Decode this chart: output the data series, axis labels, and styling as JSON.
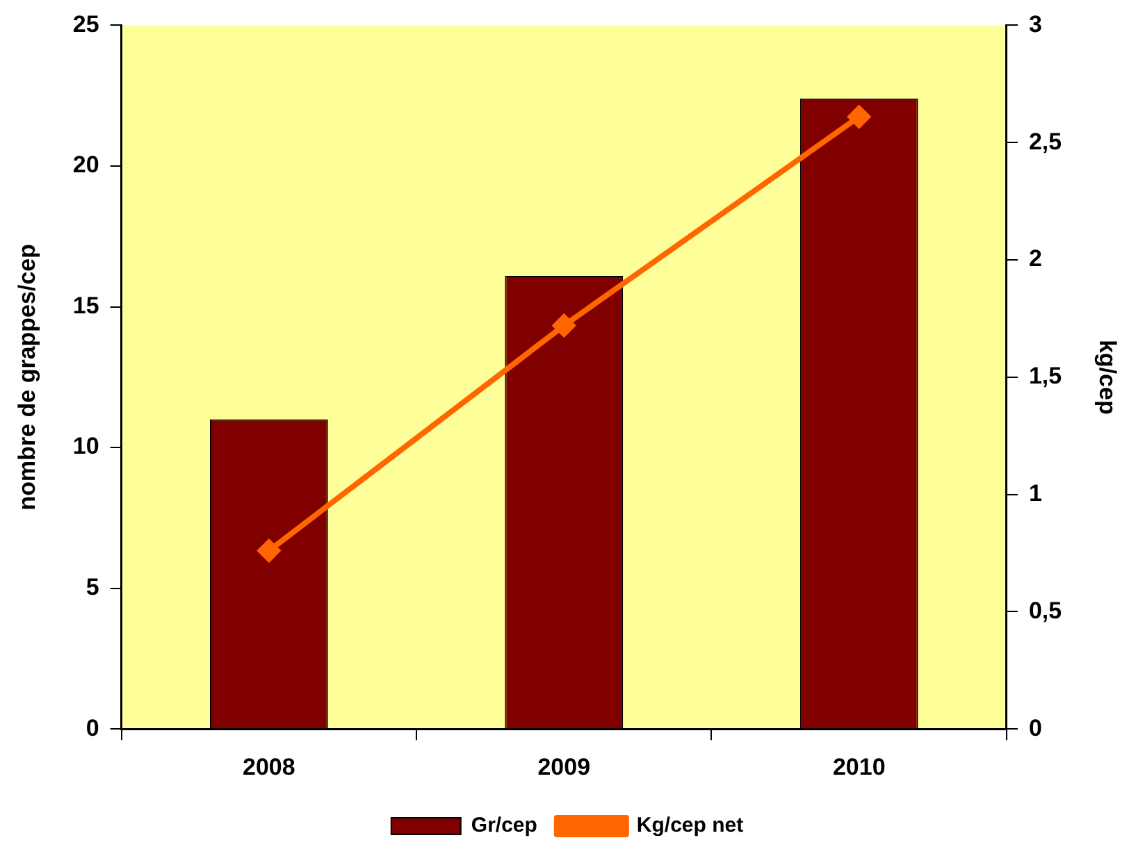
{
  "chart_data": {
    "type": "bar",
    "ylabel": "nombre de grappes/cep",
    "y2label": "kg/cep",
    "categories": [
      "2008",
      "2009",
      "2010"
    ],
    "series": [
      {
        "name": "Gr/cep",
        "color": "#800000",
        "values": [
          11,
          16.1,
          22.4
        ]
      },
      {
        "name": "Kg/cep net",
        "type": "line",
        "axis": "y2",
        "color": "#ff6600",
        "marker": "diamond",
        "values": [
          0.76,
          1.72,
          2.61
        ]
      }
    ],
    "ylim": [
      0,
      25
    ],
    "yticks": [
      0,
      5,
      10,
      15,
      20,
      25
    ],
    "y2lim": [
      0,
      3
    ],
    "y2ticks": [
      0,
      {
        "value": 0.5,
        "label": "0,5"
      },
      1,
      {
        "value": 1.5,
        "label": "1,5"
      },
      2,
      {
        "value": 2.5,
        "label": "2,5"
      },
      3
    ],
    "grid": false,
    "legend": "bottom"
  }
}
